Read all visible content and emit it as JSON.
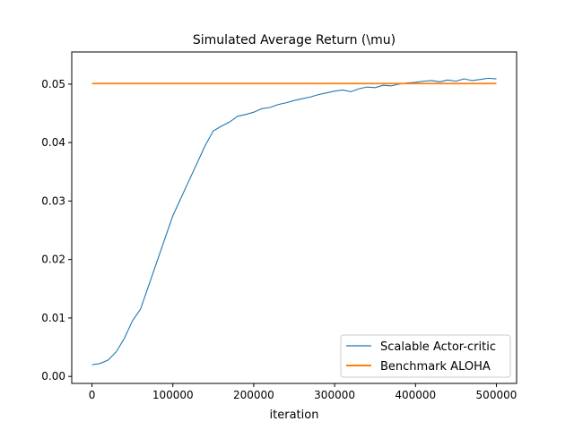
{
  "chart_data": {
    "type": "line",
    "title": "Simulated Average Return (\\mu)",
    "xlabel": "iteration",
    "ylabel": "",
    "xlim": [
      -25000,
      525000
    ],
    "ylim": [
      -0.0012,
      0.0555
    ],
    "grid": false,
    "legend_position": "lower-right",
    "x_ticks": [
      0,
      100000,
      200000,
      300000,
      400000,
      500000
    ],
    "x_tick_labels": [
      "0",
      "100000",
      "200000",
      "300000",
      "400000",
      "500000"
    ],
    "y_ticks": [
      0.0,
      0.01,
      0.02,
      0.03,
      0.04,
      0.05
    ],
    "y_tick_labels": [
      "0.00",
      "0.01",
      "0.02",
      "0.03",
      "0.04",
      "0.05"
    ],
    "series": [
      {
        "name": "Scalable Actor-critic",
        "color": "#1f77b4",
        "x": [
          0,
          10000,
          20000,
          30000,
          40000,
          50000,
          60000,
          70000,
          80000,
          90000,
          100000,
          110000,
          120000,
          130000,
          140000,
          150000,
          160000,
          170000,
          180000,
          190000,
          200000,
          210000,
          220000,
          230000,
          240000,
          250000,
          260000,
          270000,
          280000,
          290000,
          300000,
          310000,
          320000,
          330000,
          340000,
          350000,
          360000,
          370000,
          380000,
          390000,
          400000,
          410000,
          420000,
          430000,
          440000,
          450000,
          460000,
          470000,
          480000,
          490000,
          500000
        ],
        "values": [
          0.002,
          0.0022,
          0.0028,
          0.0042,
          0.0065,
          0.0095,
          0.0115,
          0.0155,
          0.0195,
          0.0235,
          0.0275,
          0.0305,
          0.0335,
          0.0365,
          0.0395,
          0.042,
          0.0428,
          0.0435,
          0.0445,
          0.0448,
          0.0452,
          0.0458,
          0.046,
          0.0465,
          0.0468,
          0.0472,
          0.0475,
          0.0478,
          0.0482,
          0.0485,
          0.0488,
          0.049,
          0.0487,
          0.0492,
          0.0495,
          0.0494,
          0.0498,
          0.0497,
          0.05,
          0.0502,
          0.0503,
          0.0505,
          0.0506,
          0.0504,
          0.0507,
          0.0505,
          0.0509,
          0.0506,
          0.0508,
          0.051,
          0.0509
        ]
      },
      {
        "name": "Benchmark ALOHA",
        "color": "#ff7f0e",
        "x": [
          0,
          500000
        ],
        "values": [
          0.0501,
          0.0501
        ]
      }
    ]
  }
}
